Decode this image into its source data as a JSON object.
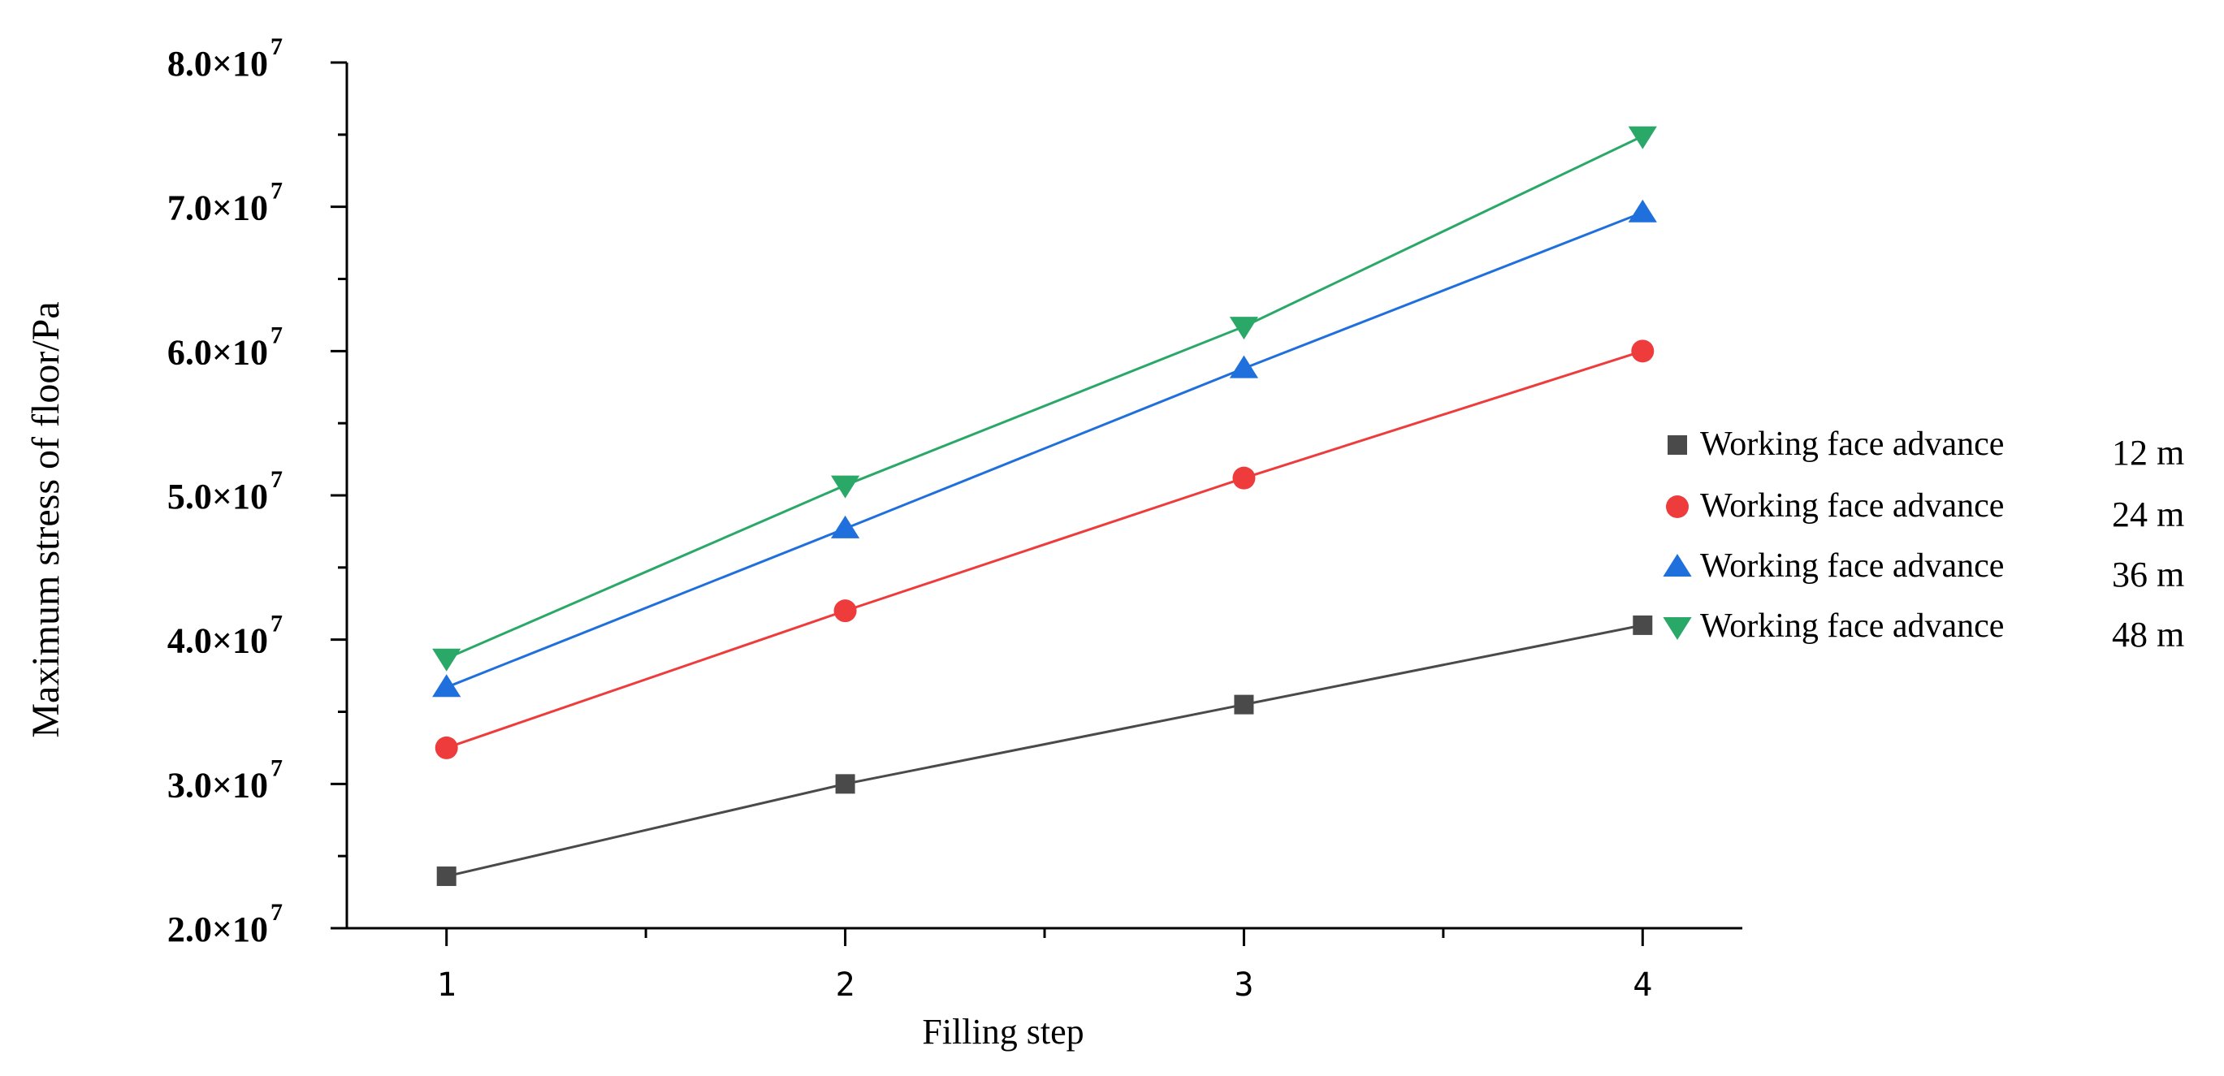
{
  "chart_data": {
    "type": "line",
    "title": "",
    "xlabel": "Filling step",
    "ylabel": "Maximum stress of floor/Pa",
    "x": [
      1,
      2,
      3,
      4
    ],
    "xlim": [
      0.75,
      4.25
    ],
    "ylim": [
      20000000,
      80000000
    ],
    "yticks": [
      {
        "value": 20000000,
        "mantissa": "2.0×10",
        "exp": "7"
      },
      {
        "value": 30000000,
        "mantissa": "3.0×10",
        "exp": "7"
      },
      {
        "value": 40000000,
        "mantissa": "4.0×10",
        "exp": "7"
      },
      {
        "value": 50000000,
        "mantissa": "5.0×10",
        "exp": "7"
      },
      {
        "value": 60000000,
        "mantissa": "6.0×10",
        "exp": "7"
      },
      {
        "value": 70000000,
        "mantissa": "7.0×10",
        "exp": "7"
      },
      {
        "value": 80000000,
        "mantissa": "8.0×10",
        "exp": "7"
      }
    ],
    "xticks": [
      "1",
      "2",
      "3",
      "4"
    ],
    "grid": false,
    "legend_position": "right",
    "series": [
      {
        "name": "Working face advance",
        "advance": "12 m",
        "marker": "square",
        "color": "#4a4a4a",
        "values": [
          23600000,
          30000000,
          35500000,
          41000000
        ]
      },
      {
        "name": "Working face advance",
        "advance": "24 m",
        "marker": "circle",
        "color": "#ee3b3b",
        "values": [
          32500000,
          42000000,
          51200000,
          60000000
        ]
      },
      {
        "name": "Working face advance",
        "advance": "36 m",
        "marker": "triangle-up",
        "color": "#1f6fdc",
        "values": [
          36700000,
          47700000,
          58800000,
          69600000
        ]
      },
      {
        "name": "Working face advance",
        "advance": "48 m",
        "marker": "triangle-down",
        "color": "#2aa868",
        "values": [
          38700000,
          50700000,
          61700000,
          74900000
        ]
      }
    ]
  }
}
